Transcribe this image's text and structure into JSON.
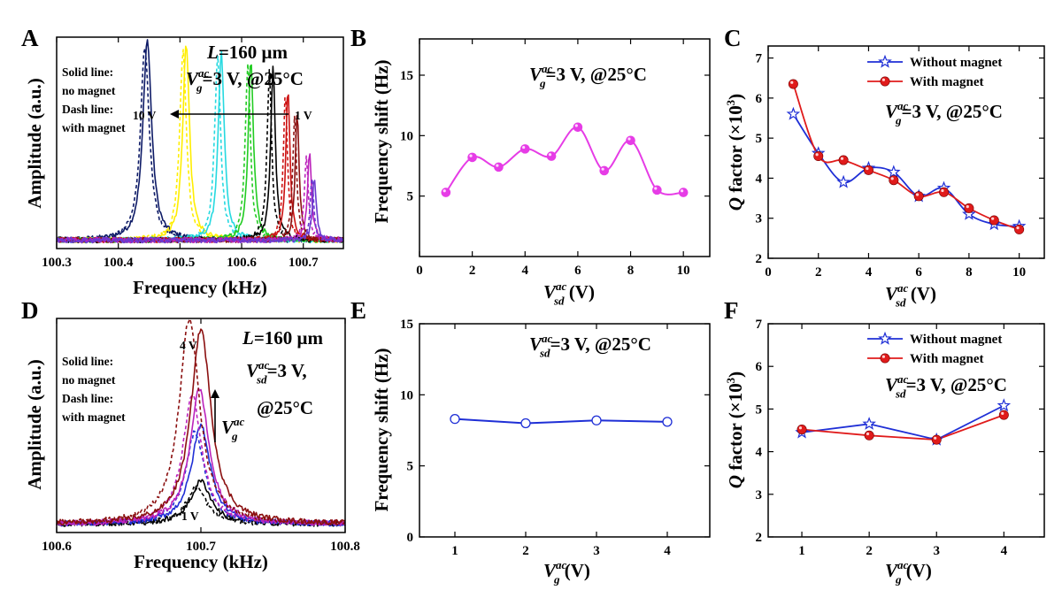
{
  "chart_data": [
    {
      "panel": "A",
      "type": "line",
      "xlabel": "Frequency (kHz)",
      "ylabel": "Amplitude (a.u.)",
      "xlim": [
        100.3,
        100.765
      ],
      "ylim": [
        0,
        1
      ],
      "xticks": [
        "100.3",
        "100.4",
        "100.5",
        "100.6",
        "100.7"
      ],
      "yticks_shown": false,
      "annotations": {
        "length": "L=160 μm",
        "drive": "V_g^ac=3 V, @25°C",
        "solid": [
          "Solid line:",
          "no magnet"
        ],
        "dash": [
          "Dash line:",
          "with magnet"
        ],
        "arrow_left": "10 V",
        "arrow_right": "1 V"
      },
      "series": [
        {
          "color": "#0d1a66",
          "peak_x": 100.447,
          "peak_x_dashed": 100.443,
          "height": 0.95,
          "width": 0.0085
        },
        {
          "color": "#ffee00",
          "peak_x": 100.51,
          "peak_x_dashed": 100.505,
          "height": 0.93,
          "width": 0.0065
        },
        {
          "color": "#26d9e0",
          "peak_x": 100.567,
          "peak_x_dashed": 100.561,
          "height": 0.9,
          "width": 0.0058
        },
        {
          "color": "#22cc22",
          "peak_x": 100.615,
          "peak_x_dashed": 100.61,
          "height": 0.86,
          "width": 0.005
        },
        {
          "color": "#000000",
          "peak_x": 100.651,
          "peak_x_dashed": 100.645,
          "height": 0.82,
          "width": 0.0045
        },
        {
          "color": "#cc1111",
          "peak_x": 100.675,
          "peak_x_dashed": 100.671,
          "height": 0.72,
          "width": 0.004
        },
        {
          "color": "#8b1010",
          "peak_x": 100.69,
          "peak_x_dashed": 100.686,
          "height": 0.6,
          "width": 0.0038
        },
        {
          "color": "#bb22bb",
          "peak_x": 100.71,
          "peak_x_dashed": 100.705,
          "height": 0.42,
          "width": 0.0038
        },
        {
          "color": "#6a3ad0",
          "peak_x": 100.718,
          "peak_x_dashed": 100.714,
          "height": 0.3,
          "width": 0.0035
        }
      ]
    },
    {
      "panel": "B",
      "type": "line",
      "xlabel": "V_sd^ac (V)",
      "ylabel": "Frequency shift (Hz)",
      "xlim": [
        0,
        11
      ],
      "ylim": [
        0,
        18
      ],
      "xticks": [
        0,
        2,
        4,
        6,
        8,
        10
      ],
      "yticks": [
        5,
        10,
        15
      ],
      "annotation": "V_g^ac=3 V, @25°C",
      "x": [
        1,
        2,
        3,
        4,
        5,
        6,
        7,
        8,
        9,
        10
      ],
      "y": [
        5.3,
        8.2,
        7.4,
        8.9,
        8.3,
        10.7,
        7.1,
        9.6,
        5.5,
        5.3
      ],
      "color": "#e63ce6"
    },
    {
      "panel": "C",
      "type": "line",
      "xlabel": "V_sd^ac (V)",
      "ylabel": "Q factor (×10^3)",
      "xlim": [
        0,
        11
      ],
      "ylim": [
        2,
        7.3
      ],
      "xticks": [
        0,
        2,
        4,
        6,
        8,
        10
      ],
      "yticks": [
        2,
        3,
        4,
        5,
        6,
        7
      ],
      "annotation": "V_g^ac=3 V, @25°C",
      "legend_position": "top-right",
      "series": [
        {
          "name": "Without magnet",
          "color": "#1f2fd6",
          "marker": "star",
          "x": [
            1,
            2,
            3,
            4,
            5,
            6,
            7,
            8,
            9,
            10
          ],
          "y": [
            5.6,
            4.62,
            3.9,
            4.25,
            4.15,
            3.55,
            3.75,
            3.1,
            2.85,
            2.8
          ]
        },
        {
          "name": "With magnet",
          "color": "#e01b1b",
          "marker": "ball",
          "x": [
            1,
            2,
            3,
            4,
            5,
            6,
            7,
            8,
            9,
            10
          ],
          "y": [
            6.35,
            4.55,
            4.45,
            4.2,
            3.95,
            3.55,
            3.65,
            3.25,
            2.95,
            2.72
          ]
        }
      ]
    },
    {
      "panel": "D",
      "type": "line",
      "xlabel": "Frequency (kHz)",
      "ylabel": "Amplitude (a.u.)",
      "xlim": [
        100.6,
        100.8
      ],
      "ylim": [
        0,
        1
      ],
      "xticks": [
        "100.6",
        "100.7",
        "100.8"
      ],
      "yticks_shown": false,
      "annotations": {
        "length": "L=160 μm",
        "drive_1": "V_sd^ac=3 V,",
        "drive_2": "@25°C",
        "solid": [
          "Solid line:",
          "no magnet"
        ],
        "dash": [
          "Dash line:",
          "with magnet"
        ],
        "top_label": "4 V",
        "bottom_label": "1 V",
        "arrow_label": "V_g^ac"
      },
      "series": [
        {
          "color": "#000000",
          "peak_x": 100.7,
          "peak_x_dashed": 100.697,
          "height": 0.2,
          "height_dashed": 0.17,
          "width": 0.0085
        },
        {
          "color": "#1f2fd6",
          "peak_x": 100.7,
          "peak_x_dashed": 100.696,
          "height": 0.46,
          "height_dashed": 0.43,
          "width": 0.008
        },
        {
          "color": "#bb22bb",
          "peak_x": 100.699,
          "peak_x_dashed": 100.694,
          "height": 0.63,
          "height_dashed": 0.6,
          "width": 0.008
        },
        {
          "color": "#8b1010",
          "peak_x": 100.7,
          "peak_x_dashed": 100.692,
          "height": 0.91,
          "height_dashed": 0.96,
          "width": 0.0085
        }
      ]
    },
    {
      "panel": "E",
      "type": "line",
      "xlabel": "V_g^ac (V)",
      "ylabel": "Frequency shift (Hz)",
      "xlim": [
        0.5,
        4.6
      ],
      "ylim": [
        0,
        15
      ],
      "xticks": [
        1,
        2,
        3,
        4
      ],
      "yticks": [
        0,
        5,
        10,
        15
      ],
      "annotation": "V_sd^ac=3 V, @25°C",
      "x": [
        1,
        2,
        3,
        4
      ],
      "y": [
        8.3,
        8.0,
        8.2,
        8.1
      ],
      "color": "#1f2fd6"
    },
    {
      "panel": "F",
      "type": "line",
      "xlabel": "V_g^ac (V)",
      "ylabel": "Q factor (×10^3)",
      "xlim": [
        0.5,
        4.6
      ],
      "ylim": [
        2,
        7
      ],
      "xticks": [
        1,
        2,
        3,
        4
      ],
      "yticks": [
        2,
        3,
        4,
        5,
        6,
        7
      ],
      "annotation": "V_sd^ac=3 V, @25°C",
      "legend_position": "top-right",
      "series": [
        {
          "name": "Without magnet",
          "color": "#1f2fd6",
          "marker": "star",
          "x": [
            1,
            2,
            3,
            4
          ],
          "y": [
            4.45,
            4.65,
            4.28,
            5.08
          ]
        },
        {
          "name": "With magnet",
          "color": "#e01b1b",
          "marker": "ball",
          "x": [
            1,
            2,
            3,
            4
          ],
          "y": [
            4.52,
            4.38,
            4.28,
            4.86
          ]
        }
      ]
    }
  ]
}
